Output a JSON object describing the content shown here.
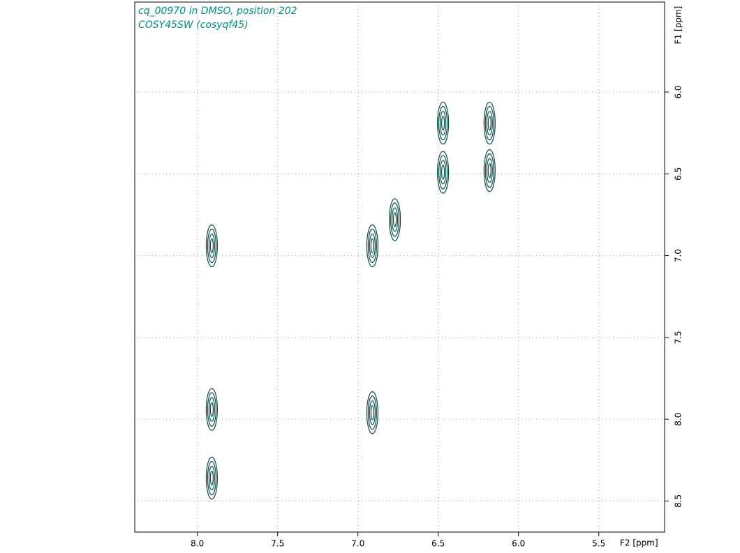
{
  "chart_data": {
    "type": "contour",
    "title": "cq_00970 in DMSO, position 202",
    "subtitle": "COSY45SW (cosyqf45)",
    "x_label": "F2 [ppm]",
    "y_label": "F1 [ppm]",
    "x": [
      7.91,
      6.91,
      6.77,
      6.47,
      6.18,
      6.47,
      6.18,
      7.91,
      6.91,
      7.91
    ],
    "y": [
      6.94,
      6.94,
      6.78,
      6.49,
      6.19,
      6.19,
      6.48,
      7.94,
      7.96,
      8.36
    ],
    "color": "#0b4a48",
    "xlim": [
      8.39,
      5.09
    ],
    "ylim": [
      5.45,
      8.69
    ],
    "xticks": [
      {
        "value": 8,
        "label": "8.0"
      },
      7.5,
      {
        "value": 7,
        "label": "7.0"
      },
      6.5,
      {
        "value": 6,
        "label": "6.0"
      },
      5.5
    ],
    "yticks": [
      {
        "value": 6,
        "label": "6.0"
      },
      6.5,
      {
        "value": 7,
        "label": "7.0"
      },
      7.5,
      {
        "value": 8,
        "label": "8.0"
      },
      8.5
    ],
    "grid": true
  }
}
